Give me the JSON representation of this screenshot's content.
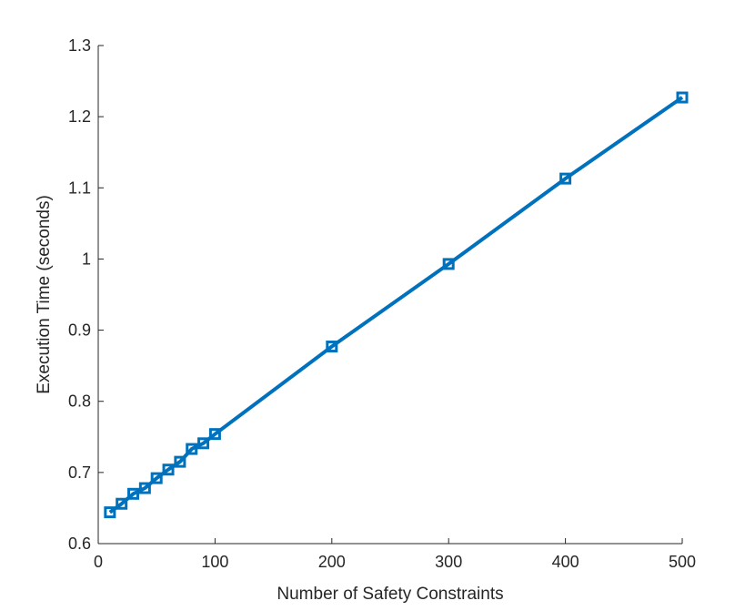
{
  "chart_data": {
    "type": "line",
    "title": "",
    "xlabel": "Number of Safety Constraints",
    "ylabel": "Execution Time (seconds)",
    "xlim": [
      0,
      500
    ],
    "ylim": [
      0.6,
      1.3
    ],
    "xticks": [
      0,
      100,
      200,
      300,
      400,
      500
    ],
    "xtick_labels": [
      "0",
      "100",
      "200",
      "300",
      "400",
      "500"
    ],
    "yticks": [
      0.6,
      0.7,
      0.8,
      0.9,
      1.0,
      1.1,
      1.2,
      1.3
    ],
    "ytick_labels": [
      "0.6",
      "0.7",
      "0.8",
      "0.9",
      "1",
      "1.1",
      "1.2",
      "1.3"
    ],
    "grid": false,
    "legend": null,
    "series": [
      {
        "color": "#0072BD",
        "marker": "square",
        "x": [
          10,
          20,
          30,
          40,
          50,
          60,
          70,
          80,
          90,
          100,
          200,
          300,
          400,
          500
        ],
        "y": [
          0.644,
          0.656,
          0.67,
          0.678,
          0.692,
          0.704,
          0.715,
          0.733,
          0.741,
          0.754,
          0.877,
          0.993,
          1.113,
          1.227
        ]
      }
    ]
  }
}
